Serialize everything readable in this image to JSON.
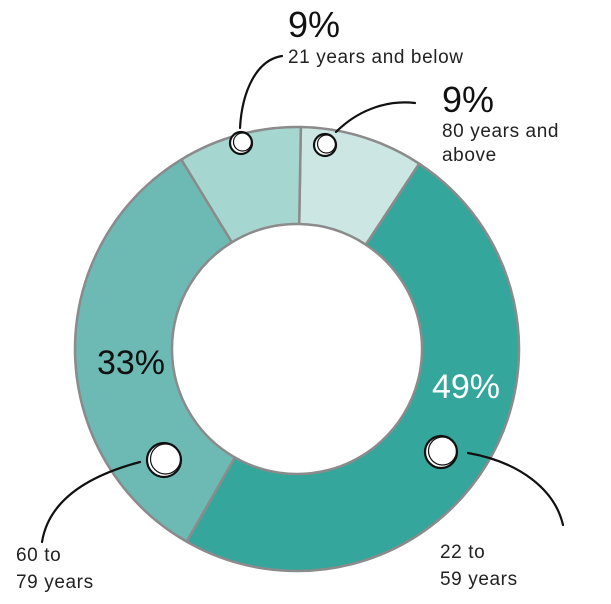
{
  "chart_data": {
    "type": "pie",
    "style": "donut",
    "title": "",
    "slices": [
      {
        "label": "80 years and above",
        "label_lines": [
          "80 years and",
          "above"
        ],
        "value": 9,
        "display": "9%",
        "color": "#cce7e3"
      },
      {
        "label": "22 to 59 years",
        "label_lines": [
          "22 to",
          "59 years"
        ],
        "value": 49,
        "display": "49%",
        "color": "#35a69c"
      },
      {
        "label": "60 to 79 years",
        "label_lines": [
          "60 to",
          "79 years"
        ],
        "value": 33,
        "display": "33%",
        "color": "#6cbab3"
      },
      {
        "label": "21 years and below",
        "label_lines": [
          "21 years and below"
        ],
        "value": 9,
        "display": "9%",
        "color": "#a6d6d0"
      }
    ],
    "outline_color": "#8b8b8b"
  }
}
